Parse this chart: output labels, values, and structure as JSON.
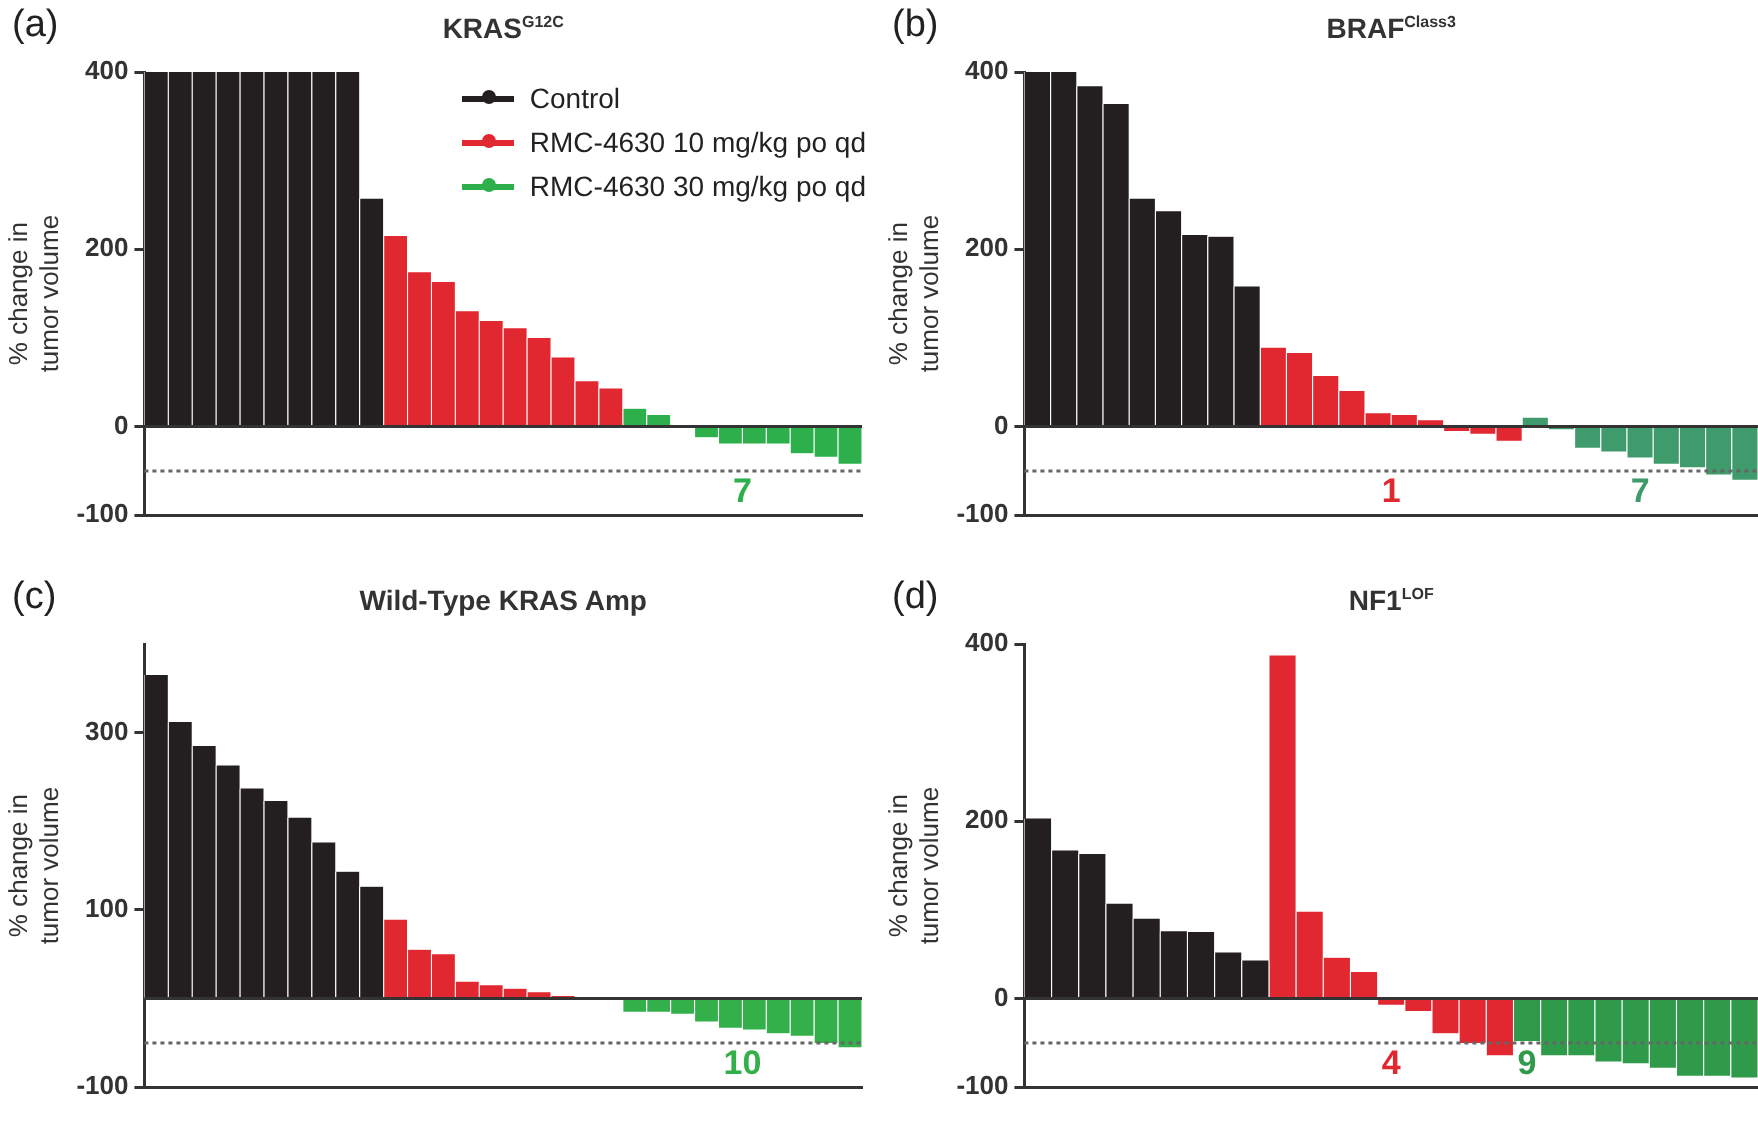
{
  "chart_data": [
    {
      "type": "bar",
      "subtitle": "(a)",
      "title": "KRAS$^{G12C}$",
      "ylabel": "% change in tumor volume",
      "legend": "top right",
      "categories": [
        null,
        null,
        null,
        null,
        null,
        null,
        null,
        null,
        null,
        null,
        null,
        null,
        null,
        null,
        null,
        null,
        null,
        null,
        null,
        null,
        null,
        null,
        null,
        null,
        null,
        null,
        null,
        null,
        null,
        null
      ],
      "series": [
        {
          "name": "Control",
          "color": "#231f20",
          "values": [
            400,
            400,
            400,
            400,
            400,
            400,
            400,
            400,
            400,
            257,
            null,
            null,
            null,
            null,
            null,
            null,
            null,
            null,
            null,
            null,
            null,
            null,
            null,
            null,
            null,
            null,
            null,
            null,
            null,
            null
          ]
        },
        {
          "name": "RMC-4630 10 mg/kg po qd",
          "color": "#e1272f",
          "values": [
            null,
            null,
            null,
            null,
            null,
            null,
            null,
            null,
            null,
            null,
            215,
            174,
            163,
            130,
            119,
            111,
            100,
            78,
            51,
            43,
            null,
            null,
            null,
            null,
            null,
            null,
            null,
            null,
            null,
            null
          ]
        },
        {
          "name": "RMC-4630 30 mg/kg po qd",
          "color": "#2db04b",
          "values": [
            null,
            null,
            null,
            null,
            null,
            null,
            null,
            null,
            null,
            null,
            null,
            null,
            null,
            null,
            null,
            null,
            null,
            null,
            null,
            null,
            20,
            13,
            0,
            -12,
            -19,
            -19,
            -19,
            -30,
            -34,
            -42
          ]
        }
      ],
      "ylim": [
        -100,
        400
      ],
      "yticks": [
        -100,
        0,
        200,
        400
      ],
      "ref_lines": [
        {
          "axis": "y",
          "value": -50,
          "color": "#666666",
          "line_style": "dotted"
        }
      ],
      "annotations": [
        "7"
      ]
    },
    {
      "type": "bar",
      "subtitle": "(b)",
      "title": "BRAF$^{Class3}$",
      "ylabel": "% change in tumor volume",
      "categories": [
        null,
        null,
        null,
        null,
        null,
        null,
        null,
        null,
        null,
        null,
        null,
        null,
        null,
        null,
        null,
        null,
        null,
        null,
        null,
        null,
        null,
        null,
        null,
        null,
        null,
        null,
        null,
        null
      ],
      "series": [
        {
          "color": "#231f20",
          "values": [
            400,
            400,
            384,
            364,
            257,
            243,
            216,
            214,
            158,
            null,
            null,
            null,
            null,
            null,
            null,
            null,
            null,
            null,
            null,
            null,
            null,
            null,
            null,
            null,
            null,
            null,
            null,
            null
          ]
        },
        {
          "color": "#e1272f",
          "values": [
            null,
            null,
            null,
            null,
            null,
            null,
            null,
            null,
            null,
            89,
            83,
            57,
            40,
            15,
            13,
            7,
            -5,
            -8,
            -16,
            null,
            null,
            null,
            null,
            null,
            null,
            null,
            null,
            null
          ]
        },
        {
          "color": "#3f9a6c",
          "values": [
            null,
            null,
            null,
            null,
            null,
            null,
            null,
            null,
            null,
            null,
            null,
            null,
            null,
            null,
            null,
            null,
            null,
            null,
            null,
            10,
            -3,
            -24,
            -28,
            -35,
            -42,
            -46,
            -54,
            -60
          ]
        }
      ],
      "ylim": [
        -100,
        400
      ],
      "yticks": [
        -100,
        0,
        200,
        400
      ],
      "ref_lines": [
        {
          "axis": "y",
          "value": -50,
          "color": "#666666",
          "line_style": "dotted"
        }
      ],
      "annotations": [
        "1",
        "7"
      ]
    },
    {
      "type": "bar",
      "subtitle": "(c)",
      "title": "Wild-Type KRAS Amp",
      "ylabel": "% change in tumor volume",
      "categories": [
        null,
        null,
        null,
        null,
        null,
        null,
        null,
        null,
        null,
        null,
        null,
        null,
        null,
        null,
        null,
        null,
        null,
        null,
        null,
        null,
        null,
        null,
        null,
        null,
        null,
        null,
        null,
        null,
        null,
        null
      ],
      "series": [
        {
          "color": "#231f20",
          "values": [
            365,
            312,
            285,
            263,
            237,
            223,
            204,
            176,
            143,
            126,
            null,
            null,
            null,
            null,
            null,
            null,
            null,
            null,
            null,
            null,
            null,
            null,
            null,
            null,
            null,
            null,
            null,
            null,
            null,
            null
          ]
        },
        {
          "color": "#e1272f",
          "values": [
            null,
            null,
            null,
            null,
            null,
            null,
            null,
            null,
            null,
            null,
            89,
            55,
            50,
            19,
            15,
            11,
            7,
            3,
            null,
            0,
            null,
            null,
            null,
            null,
            null,
            null,
            null,
            null,
            null,
            null
          ]
        },
        {
          "color": "#34b04a",
          "values": [
            null,
            null,
            null,
            null,
            null,
            null,
            null,
            null,
            null,
            null,
            null,
            null,
            null,
            null,
            null,
            null,
            null,
            null,
            null,
            null,
            -15,
            -15,
            -17,
            -26,
            -33,
            -35,
            -39,
            -42,
            -50,
            -55
          ]
        }
      ],
      "ylim": [
        -100,
        400
      ],
      "yticks": [
        -100,
        100,
        300
      ],
      "ref_lines": [
        {
          "axis": "y",
          "value": -50,
          "color": "#666666",
          "line_style": "dotted"
        }
      ],
      "annotations": [
        "10"
      ]
    },
    {
      "type": "bar",
      "subtitle": "(d)",
      "title": "NF1$^{LOF}$",
      "ylabel": "% change in tumor volume",
      "categories": [
        null,
        null,
        null,
        null,
        null,
        null,
        null,
        null,
        null,
        null,
        null,
        null,
        null,
        null,
        null,
        null,
        null,
        null,
        null,
        null,
        null,
        null,
        null,
        null,
        null,
        null,
        null
      ],
      "series": [
        {
          "color": "#231f20",
          "values": [
            203,
            167,
            163,
            107,
            90,
            76,
            75,
            52,
            43,
            null,
            null,
            null,
            null,
            null,
            null,
            null,
            null,
            null,
            null,
            null,
            null,
            null,
            null,
            null,
            null,
            null,
            null
          ]
        },
        {
          "color": "#e1272f",
          "values": [
            null,
            null,
            null,
            null,
            null,
            null,
            null,
            null,
            null,
            387,
            98,
            46,
            30,
            -7,
            -14,
            -39,
            -50,
            -64,
            null,
            null,
            null,
            null,
            null,
            null,
            null,
            null,
            null
          ]
        },
        {
          "color": "#2f9a4a",
          "values": [
            null,
            null,
            null,
            null,
            null,
            null,
            null,
            null,
            null,
            null,
            null,
            null,
            null,
            null,
            null,
            null,
            null,
            null,
            -48,
            -64,
            -64,
            -71,
            -73,
            -78,
            -87,
            -87,
            -89
          ]
        }
      ],
      "ylim": [
        -100,
        400
      ],
      "yticks": [
        -100,
        0,
        200,
        400
      ],
      "ref_lines": [
        {
          "axis": "y",
          "value": -50,
          "color": "#666666",
          "line_style": "dotted"
        }
      ],
      "annotations": [
        "4",
        "9"
      ]
    }
  ]
}
